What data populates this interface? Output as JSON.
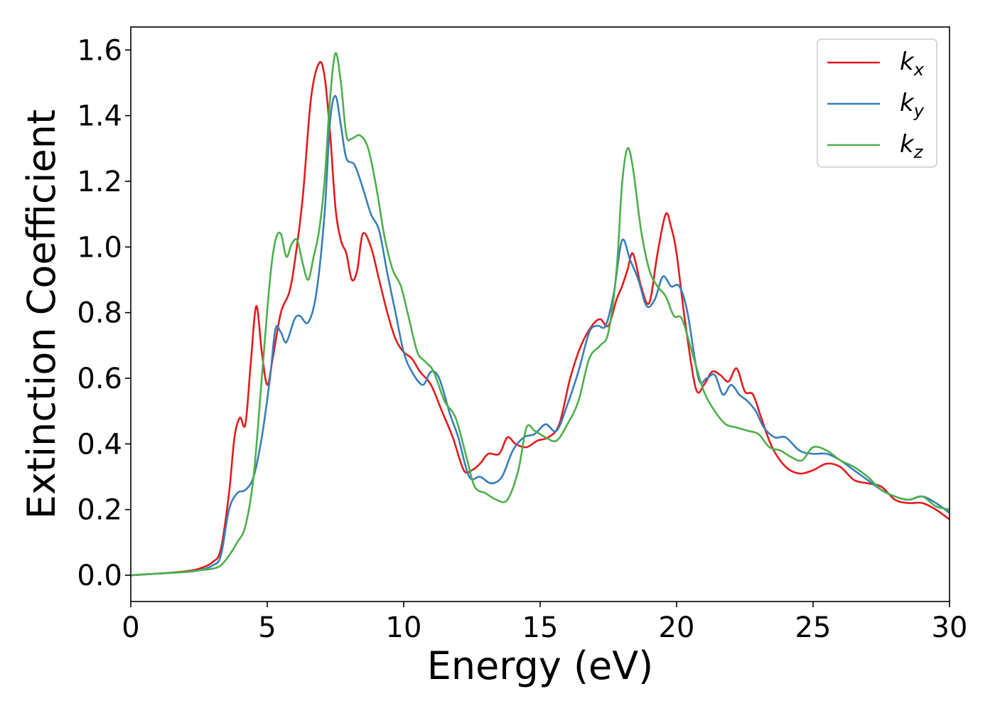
{
  "chart_data": {
    "type": "line",
    "title": "",
    "xlabel": "Energy (eV)",
    "ylabel": "Extinction Coefficient",
    "xlim": [
      0,
      30
    ],
    "ylim": [
      -0.08,
      1.67
    ],
    "xticks": [
      0,
      5,
      10,
      15,
      20,
      25,
      30
    ],
    "xtick_labels": [
      "0",
      "5",
      "10",
      "15",
      "20",
      "25",
      "30"
    ],
    "yticks": [
      0.0,
      0.2,
      0.4,
      0.6,
      0.8,
      1.0,
      1.2,
      1.4,
      1.6
    ],
    "ytick_labels": [
      "0.0",
      "0.2",
      "0.4",
      "0.6",
      "0.8",
      "1.0",
      "1.2",
      "1.4",
      "1.6"
    ],
    "grid": false,
    "legend_position": "top-right",
    "series": [
      {
        "name": "k_x",
        "label_main": "k",
        "label_sub": "x",
        "color": "#e41a1c",
        "x": [
          0,
          1,
          2,
          2.5,
          3,
          3.3,
          3.6,
          3.8,
          4.0,
          4.2,
          4.4,
          4.6,
          4.8,
          5.0,
          5.2,
          5.5,
          5.8,
          6.0,
          6.3,
          6.6,
          6.9,
          7.1,
          7.3,
          7.5,
          7.7,
          7.9,
          8.1,
          8.3,
          8.5,
          8.8,
          9.1,
          9.4,
          9.7,
          10.0,
          10.3,
          10.6,
          11.0,
          11.4,
          11.8,
          12.2,
          12.5,
          12.8,
          13.1,
          13.5,
          13.8,
          14.1,
          14.5,
          14.9,
          15.3,
          15.7,
          16.1,
          16.5,
          16.9,
          17.2,
          17.5,
          17.8,
          18.0,
          18.2,
          18.4,
          18.7,
          19.0,
          19.3,
          19.6,
          19.8,
          20.0,
          20.3,
          20.7,
          21.0,
          21.3,
          21.6,
          21.9,
          22.2,
          22.5,
          22.8,
          23.1,
          23.5,
          24.0,
          24.5,
          25.0,
          25.5,
          26.0,
          26.5,
          27.0,
          27.5,
          28.0,
          28.5,
          29.0,
          29.5,
          30.0
        ],
        "y": [
          0.0,
          0.005,
          0.012,
          0.02,
          0.04,
          0.08,
          0.25,
          0.42,
          0.48,
          0.46,
          0.65,
          0.82,
          0.68,
          0.58,
          0.66,
          0.8,
          0.86,
          0.95,
          1.15,
          1.45,
          1.56,
          1.52,
          1.35,
          1.12,
          1.02,
          0.98,
          0.9,
          0.93,
          1.04,
          1.0,
          0.9,
          0.8,
          0.72,
          0.68,
          0.66,
          0.62,
          0.58,
          0.5,
          0.42,
          0.32,
          0.32,
          0.34,
          0.37,
          0.37,
          0.42,
          0.4,
          0.39,
          0.41,
          0.42,
          0.46,
          0.6,
          0.7,
          0.76,
          0.78,
          0.76,
          0.84,
          0.88,
          0.93,
          0.98,
          0.88,
          0.83,
          0.98,
          1.1,
          1.06,
          0.98,
          0.78,
          0.57,
          0.58,
          0.62,
          0.61,
          0.59,
          0.63,
          0.56,
          0.55,
          0.48,
          0.39,
          0.33,
          0.31,
          0.32,
          0.34,
          0.33,
          0.29,
          0.28,
          0.27,
          0.23,
          0.22,
          0.22,
          0.2,
          0.17
        ]
      },
      {
        "name": "k_y",
        "label_main": "k",
        "label_sub": "y",
        "color": "#377eb8",
        "x": [
          0,
          1,
          2,
          2.5,
          3,
          3.3,
          3.6,
          3.9,
          4.2,
          4.5,
          4.8,
          5.1,
          5.3,
          5.5,
          5.7,
          6.0,
          6.2,
          6.5,
          6.8,
          7.1,
          7.3,
          7.5,
          7.7,
          7.9,
          8.2,
          8.5,
          8.8,
          9.1,
          9.4,
          9.7,
          10.0,
          10.3,
          10.7,
          11.0,
          11.3,
          11.7,
          12.0,
          12.4,
          12.8,
          13.2,
          13.6,
          14.0,
          14.4,
          14.8,
          15.2,
          15.6,
          16.0,
          16.4,
          16.8,
          17.1,
          17.4,
          17.7,
          18.0,
          18.3,
          18.6,
          18.9,
          19.2,
          19.5,
          19.8,
          20.1,
          20.4,
          20.8,
          21.1,
          21.4,
          21.7,
          22.0,
          22.3,
          22.6,
          22.9,
          23.2,
          23.6,
          24.0,
          24.5,
          25.0,
          25.5,
          26.0,
          26.5,
          27.0,
          27.5,
          28.0,
          28.5,
          29.0,
          29.5,
          30.0
        ],
        "y": [
          0.0,
          0.005,
          0.01,
          0.015,
          0.03,
          0.06,
          0.2,
          0.25,
          0.26,
          0.3,
          0.42,
          0.6,
          0.75,
          0.74,
          0.71,
          0.78,
          0.79,
          0.77,
          0.86,
          1.1,
          1.38,
          1.46,
          1.37,
          1.27,
          1.25,
          1.18,
          1.1,
          1.05,
          0.92,
          0.8,
          0.68,
          0.62,
          0.58,
          0.62,
          0.6,
          0.49,
          0.42,
          0.3,
          0.3,
          0.28,
          0.3,
          0.38,
          0.42,
          0.43,
          0.46,
          0.44,
          0.52,
          0.62,
          0.74,
          0.76,
          0.76,
          0.86,
          1.02,
          0.96,
          0.9,
          0.82,
          0.84,
          0.91,
          0.88,
          0.88,
          0.8,
          0.6,
          0.6,
          0.61,
          0.55,
          0.58,
          0.55,
          0.53,
          0.5,
          0.45,
          0.42,
          0.42,
          0.38,
          0.37,
          0.37,
          0.35,
          0.32,
          0.29,
          0.26,
          0.24,
          0.23,
          0.24,
          0.22,
          0.19
        ]
      },
      {
        "name": "k_z",
        "label_main": "k",
        "label_sub": "z",
        "color": "#4daf4a",
        "x": [
          0,
          1,
          2,
          2.5,
          3,
          3.3,
          3.6,
          3.9,
          4.2,
          4.5,
          4.8,
          5.1,
          5.3,
          5.5,
          5.7,
          5.9,
          6.1,
          6.3,
          6.5,
          6.7,
          6.9,
          7.1,
          7.3,
          7.5,
          7.7,
          7.9,
          8.1,
          8.4,
          8.7,
          9.0,
          9.3,
          9.6,
          9.9,
          10.2,
          10.5,
          10.8,
          11.1,
          11.5,
          11.9,
          12.3,
          12.6,
          13.0,
          13.4,
          13.8,
          14.2,
          14.5,
          14.8,
          15.2,
          15.6,
          16.0,
          16.4,
          16.8,
          17.2,
          17.5,
          17.8,
          18.0,
          18.2,
          18.4,
          18.7,
          19.0,
          19.3,
          19.6,
          19.9,
          20.2,
          20.6,
          21.0,
          21.4,
          21.8,
          22.2,
          22.6,
          23.0,
          23.4,
          23.8,
          24.2,
          24.6,
          25.0,
          25.5,
          26.0,
          26.5,
          27.0,
          27.5,
          28.0,
          28.5,
          29.0,
          29.5,
          30.0
        ],
        "y": [
          0.0,
          0.005,
          0.01,
          0.015,
          0.02,
          0.03,
          0.06,
          0.1,
          0.15,
          0.3,
          0.6,
          0.9,
          1.02,
          1.04,
          0.97,
          1.01,
          1.02,
          0.95,
          0.9,
          0.97,
          1.05,
          1.2,
          1.45,
          1.59,
          1.5,
          1.34,
          1.33,
          1.34,
          1.3,
          1.18,
          1.03,
          0.93,
          0.88,
          0.78,
          0.68,
          0.65,
          0.62,
          0.53,
          0.48,
          0.36,
          0.27,
          0.25,
          0.23,
          0.23,
          0.32,
          0.45,
          0.44,
          0.42,
          0.41,
          0.46,
          0.53,
          0.66,
          0.7,
          0.74,
          0.93,
          1.19,
          1.3,
          1.24,
          1.05,
          0.93,
          0.88,
          0.85,
          0.79,
          0.78,
          0.67,
          0.56,
          0.5,
          0.46,
          0.45,
          0.44,
          0.43,
          0.39,
          0.38,
          0.36,
          0.35,
          0.39,
          0.38,
          0.35,
          0.33,
          0.3,
          0.26,
          0.24,
          0.23,
          0.24,
          0.21,
          0.2
        ]
      }
    ]
  }
}
